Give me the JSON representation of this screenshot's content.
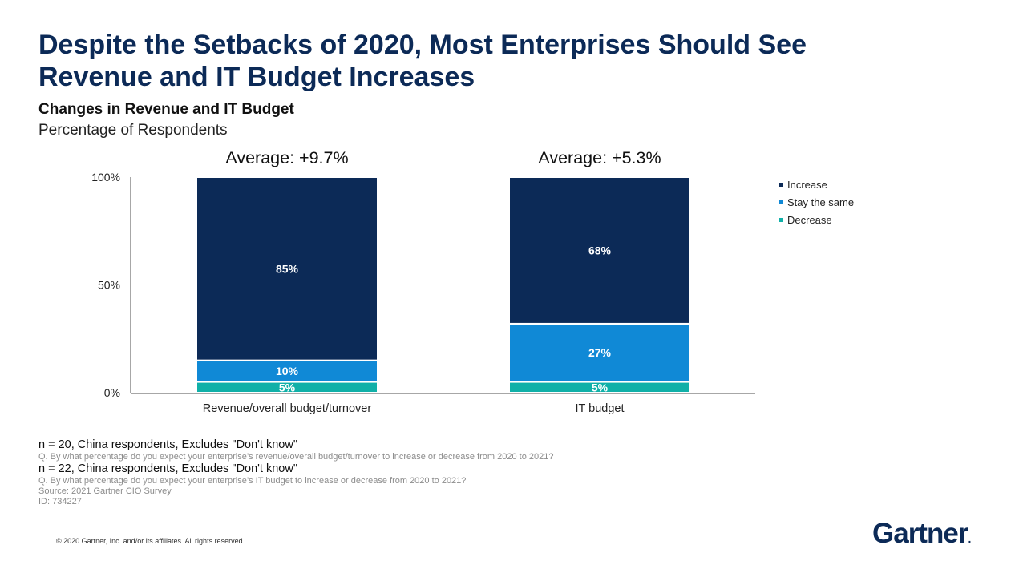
{
  "slide": {
    "title_line1": "Despite the Setbacks of 2020, Most Enterprises Should See",
    "title_line2": "Revenue and IT Budget Increases",
    "chart_title": "Changes in Revenue and IT Budget",
    "chart_subtitle": "Percentage of Respondents"
  },
  "chart_data": {
    "type": "bar",
    "stacked": true,
    "title": "Changes in Revenue and IT Budget",
    "ylabel": "Percentage of Respondents",
    "ylim": [
      0,
      100
    ],
    "yticks": [
      "0%",
      "50%",
      "100%"
    ],
    "ytick_values": [
      0,
      50,
      100
    ],
    "categories": [
      "Revenue/overall budget/turnover",
      "IT budget"
    ],
    "averages": [
      "Average: +9.7%",
      "Average: +5.3%"
    ],
    "series": [
      {
        "name": "Decrease",
        "values": [
          5,
          5
        ],
        "labels": [
          "5%",
          "5%"
        ],
        "color": "#10b0a8"
      },
      {
        "name": "Stay the same",
        "values": [
          10,
          27
        ],
        "labels": [
          "10%",
          "27%"
        ],
        "color": "#1089d6"
      },
      {
        "name": "Increase",
        "values": [
          85,
          68
        ],
        "labels": [
          "85%",
          "68%"
        ],
        "color": "#0c2a57"
      }
    ],
    "legend_order": [
      "Increase",
      "Stay the same",
      "Decrease"
    ],
    "legend_position": "right",
    "grid": false
  },
  "notes": {
    "n1": "n = 20, China respondents, Excludes \"Don't know\"",
    "q1": "Q. By what percentage do you expect your enterprise’s revenue/overall budget/turnover to increase or decrease from 2020 to 2021?",
    "n2": "n = 22, China respondents, Excludes \"Don't know\"",
    "q2": "Q. By what percentage do you expect your enterprise’s IT budget to increase or decrease from 2020 to 2021?",
    "source": "Source: 2021 Gartner CIO Survey",
    "id": "ID: 734227"
  },
  "footer": {
    "copyright": "© 2020 Gartner, Inc. and/or its affiliates. All rights reserved.",
    "logo_text": "Gartner",
    "logo_dot": "."
  }
}
